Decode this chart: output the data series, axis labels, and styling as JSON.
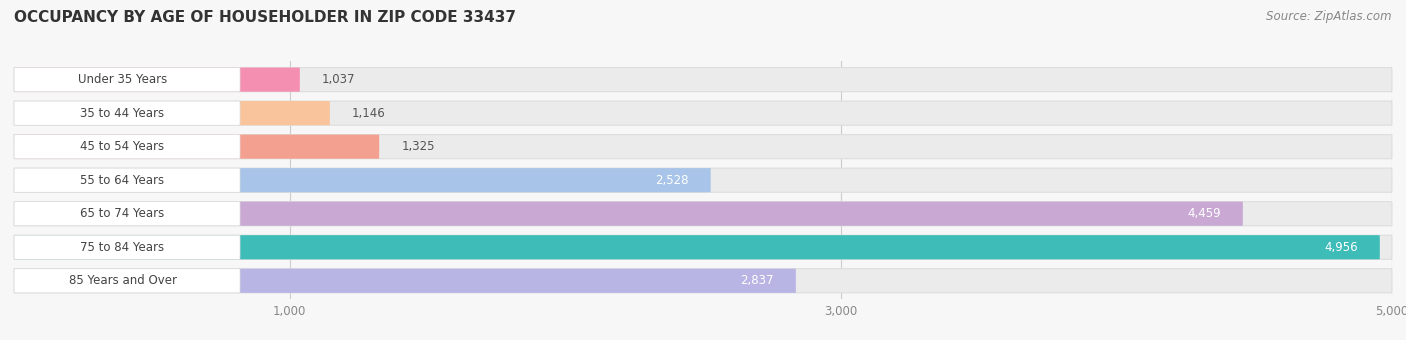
{
  "title": "OCCUPANCY BY AGE OF HOUSEHOLDER IN ZIP CODE 33437",
  "source": "Source: ZipAtlas.com",
  "categories": [
    "Under 35 Years",
    "35 to 44 Years",
    "45 to 54 Years",
    "55 to 64 Years",
    "65 to 74 Years",
    "75 to 84 Years",
    "85 Years and Over"
  ],
  "values": [
    1037,
    1146,
    1325,
    2528,
    4459,
    4956,
    2837
  ],
  "bar_colors": [
    "#f48fb1",
    "#f9c49b",
    "#f4a090",
    "#a8c4e8",
    "#c9a8d4",
    "#3dbcb8",
    "#b8b4e4"
  ],
  "xlim_min": 0,
  "xlim_max": 5100,
  "data_max": 5000,
  "xticks": [
    1000,
    3000,
    5000
  ],
  "background_color": "#f7f7f7",
  "bar_bg_color": "#ebebeb",
  "label_bg_color": "#ffffff",
  "title_fontsize": 11,
  "source_fontsize": 8.5,
  "cat_fontsize": 8.5,
  "val_fontsize": 8.5,
  "value_label_color_inside": "#ffffff",
  "value_label_color_outside": "#555555",
  "value_inside_threshold": 2000
}
